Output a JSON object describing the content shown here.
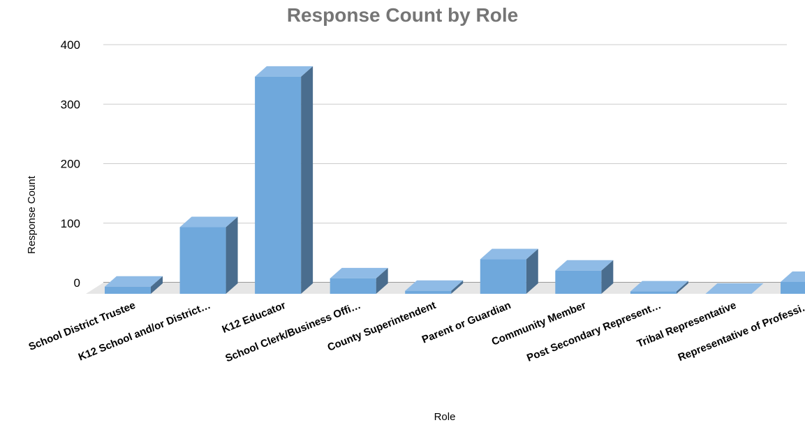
{
  "chart_data": {
    "type": "bar",
    "title": "Response Count by Role",
    "xlabel": "Role",
    "ylabel": "Response Count",
    "categories": [
      "School District Trustee",
      "K12 School and/or District…",
      "K12 Educator",
      "School Clerk/Business Offi…",
      "County Superintendent",
      "Parent or Guardian",
      "Community Member",
      "Post Secondary Represent…",
      "Tribal Representative",
      "Representative of Professi…"
    ],
    "values": [
      12,
      112,
      365,
      26,
      5,
      58,
      39,
      4,
      0,
      20
    ],
    "ylim": [
      0,
      400
    ],
    "yticks": [
      "0",
      "100",
      "200",
      "300",
      "400"
    ],
    "grid": true,
    "style": "3d",
    "colors": {
      "front": "#6fa8dc",
      "top": "#8fbbe6",
      "side": "#4a6d8e",
      "floor": "#e6e6e6"
    }
  }
}
